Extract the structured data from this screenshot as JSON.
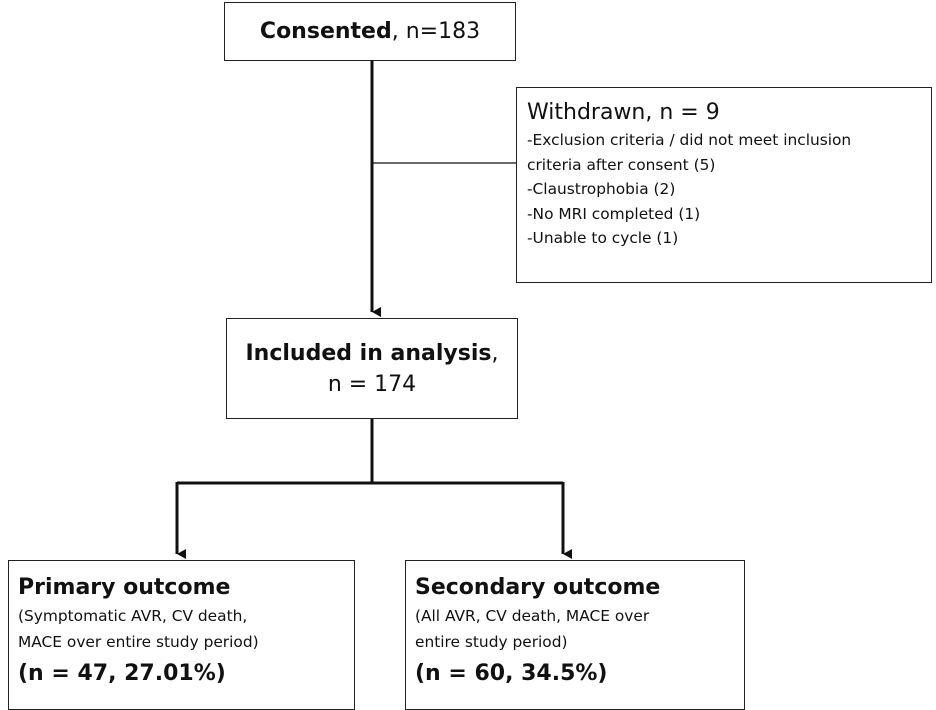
{
  "consented": {
    "label": "Consented",
    "count": ", n=183"
  },
  "withdrawn": {
    "title": "Withdrawn, n = 9",
    "reasons": [
      "-Exclusion criteria / did not meet inclusion",
      "criteria after consent (5)",
      "-Claustrophobia (2)",
      "-No MRI completed (1)",
      "-Unable to cycle (1)"
    ]
  },
  "included": {
    "label": "Included in analysis",
    "label_suffix": ",",
    "count": "n = 174"
  },
  "primary": {
    "title": "Primary outcome",
    "description": [
      "(Symptomatic AVR, CV death,",
      "MACE over entire study period)"
    ],
    "result": "(n = 47, 27.01%)"
  },
  "secondary": {
    "title": "Secondary outcome",
    "description": [
      "(All AVR, CV death, MACE over",
      "entire study period)"
    ],
    "result": "(n = 60, 34.5%)"
  },
  "colors": {
    "line": "#111111",
    "border": "#222222",
    "background": "#ffffff"
  }
}
